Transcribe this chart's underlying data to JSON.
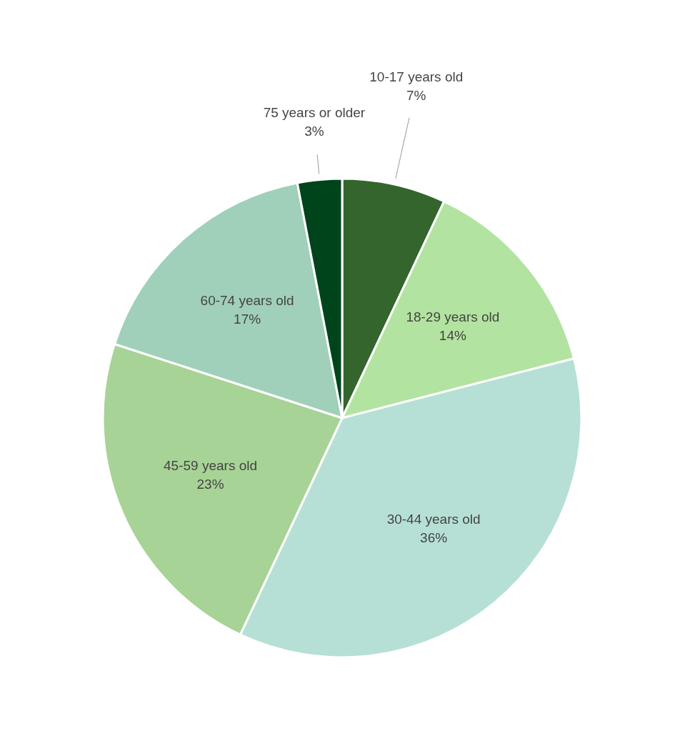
{
  "chart_data": {
    "type": "pie",
    "categories": [
      "10-17 years old",
      "18-29 years old",
      "30-44 years old",
      "45-59 years old",
      "60-74 years old",
      "75 years or older"
    ],
    "values": [
      7,
      14,
      36,
      23,
      17,
      3
    ],
    "value_labels": [
      "7%",
      "14%",
      "36%",
      "23%",
      "17%",
      "3%"
    ],
    "colors": [
      "#33652c",
      "#b3e3a0",
      "#b6e0d6",
      "#a7d396",
      "#a0d0b9",
      "#00441b"
    ]
  }
}
